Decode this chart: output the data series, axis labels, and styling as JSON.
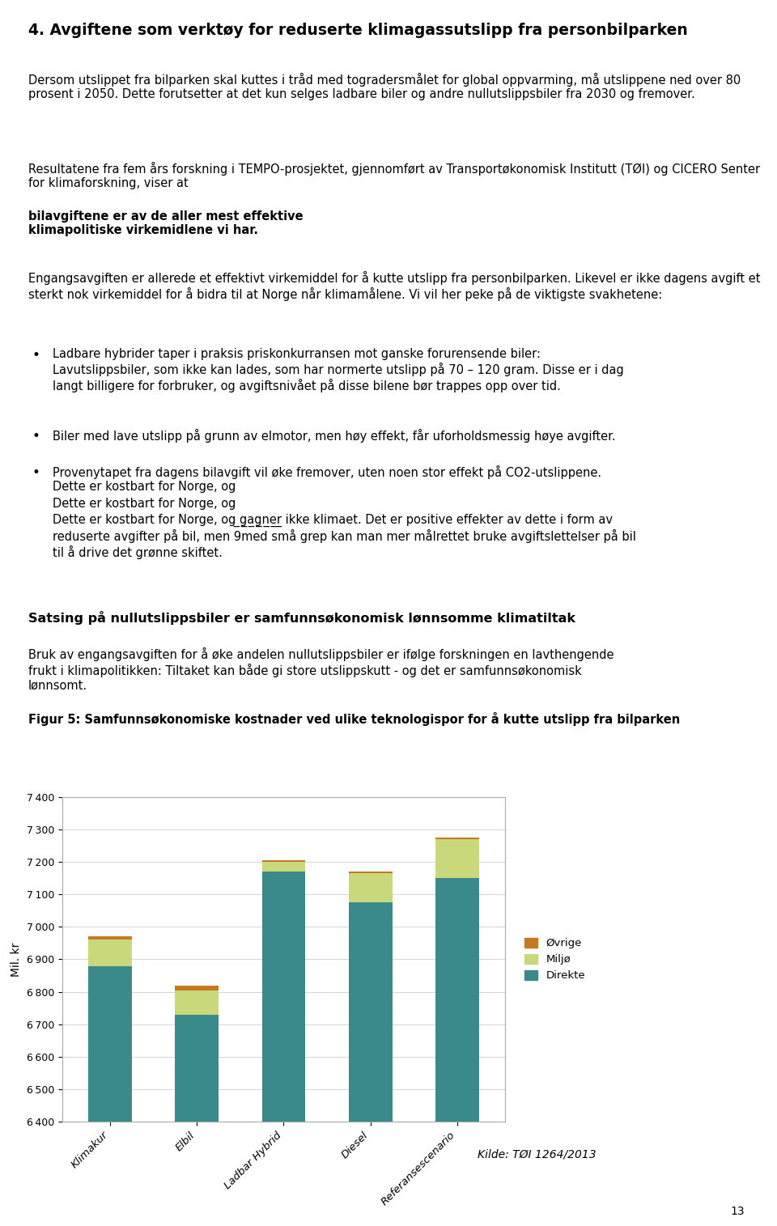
{
  "categories": [
    "Klimakur",
    "Elbil",
    "Ladbar Hybrid",
    "Diesel",
    "Referansescenario"
  ],
  "direkte_abs": [
    6880,
    6730,
    7170,
    7075,
    7150
  ],
  "miljo": [
    80,
    75,
    30,
    90,
    120
  ],
  "ovrige": [
    10,
    15,
    5,
    5,
    5
  ],
  "baseline": 6400,
  "bar_color_direkte": "#3a8a8c",
  "bar_color_miljo": "#c8d87a",
  "bar_color_ovrige": "#c87820",
  "ylim_min": 6400,
  "ylim_max": 7400,
  "ytick_step": 100,
  "ylabel": "Mil. kr",
  "legend_labels": [
    "Øvrige",
    "Miljø",
    "Direkte"
  ],
  "source": "Kilde: TØI 1264/2013"
}
